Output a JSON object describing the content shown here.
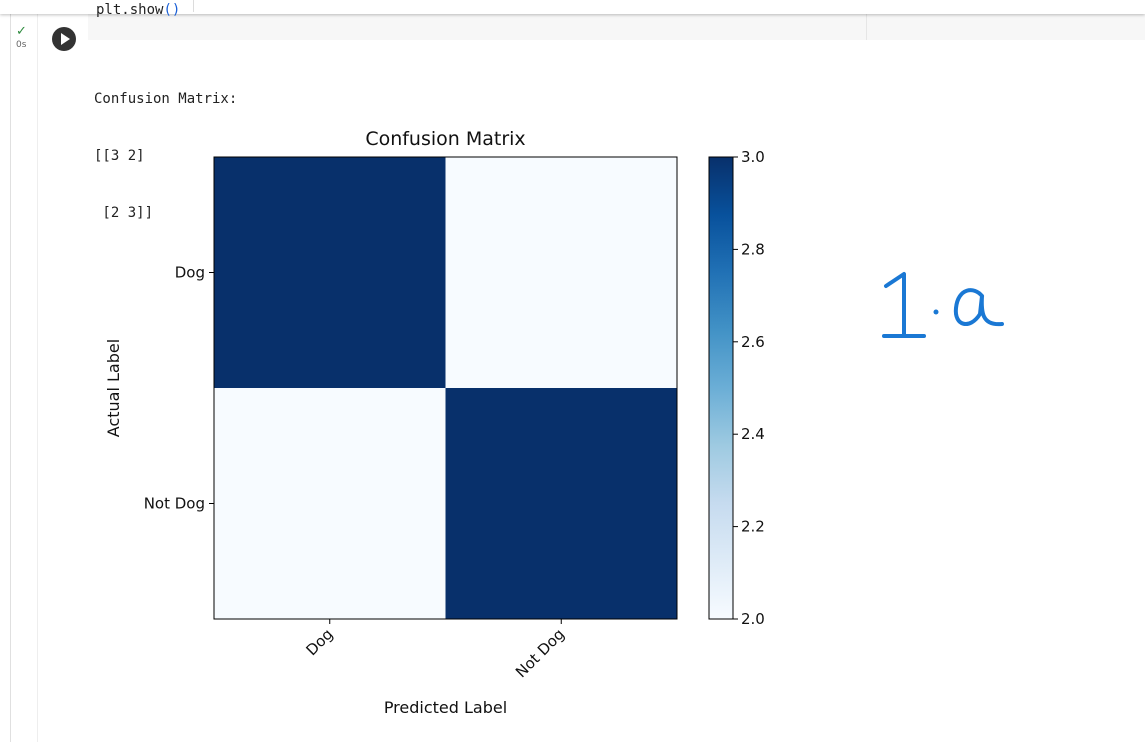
{
  "cell": {
    "code_text": "plt.show",
    "code_parens": "()",
    "status_icon": "check-icon",
    "exec_time": "0s",
    "run_icon": "play-icon"
  },
  "output": {
    "lines": [
      "Confusion Matrix:",
      "[[3 2]",
      " [2 3]]"
    ]
  },
  "chart_data": {
    "type": "heatmap",
    "title": "Confusion Matrix",
    "xlabel": "Predicted Label",
    "ylabel": "Actual Label",
    "x_categories": [
      "Dog",
      "Not Dog"
    ],
    "y_categories": [
      "Dog",
      "Not Dog"
    ],
    "values": [
      [
        3,
        2
      ],
      [
        2,
        3
      ]
    ],
    "colormap": "Blues",
    "color_low": "#f7fbff",
    "color_high": "#08306b",
    "colorbar": {
      "range": [
        2.0,
        3.0
      ],
      "ticks": [
        "3.0",
        "2.8",
        "2.6",
        "2.4",
        "2.2",
        "2.0"
      ]
    }
  },
  "annotation": {
    "handwritten": "1.a",
    "color": "#1a78d4"
  }
}
